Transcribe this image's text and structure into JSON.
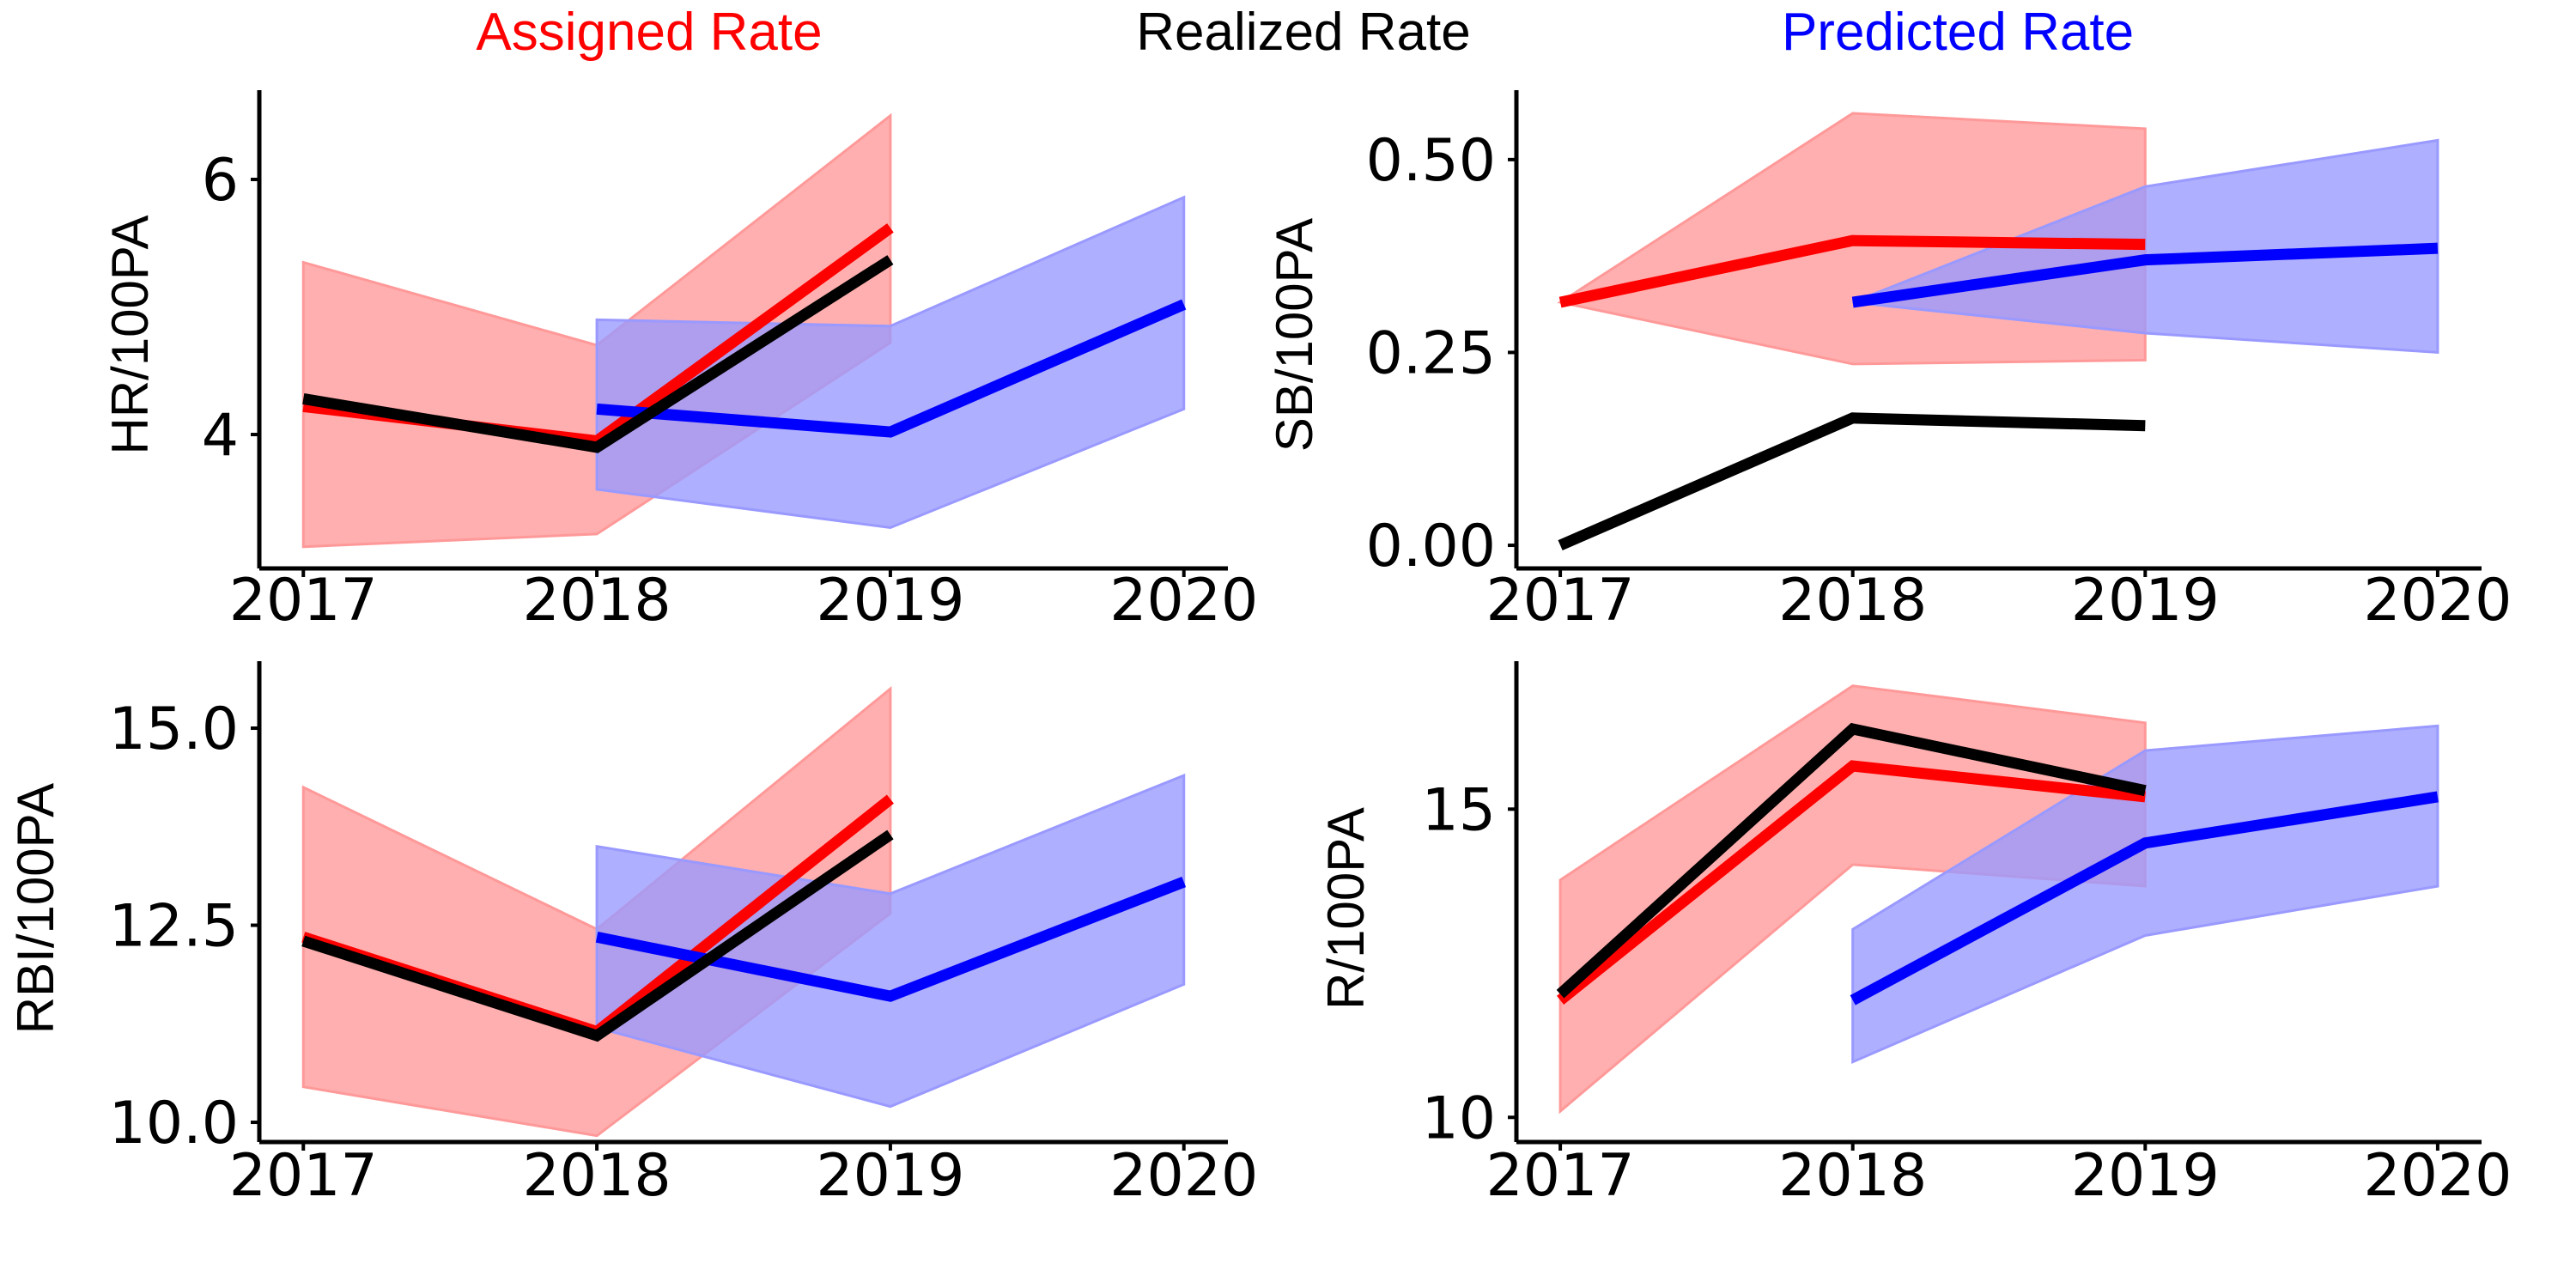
{
  "legend": [
    {
      "label": "Assigned Rate",
      "color": "#ff0000"
    },
    {
      "label": "Realized Rate",
      "color": "#000000"
    },
    {
      "label": "Predicted Rate",
      "color": "#0000ff"
    }
  ],
  "colors": {
    "assigned": "#ff0000",
    "realized": "#000000",
    "predicted": "#0000ff",
    "assigned_band": "#ff9999",
    "predicted_band": "#9999ff"
  },
  "chart_data": [
    {
      "type": "line",
      "ylabel": "HR/100PA",
      "xticks": [
        "2017",
        "2018",
        "2019",
        "2020"
      ],
      "yticks": [
        {
          "value": 4,
          "label": "4"
        },
        {
          "value": 6,
          "label": "6"
        }
      ],
      "xlim": [
        2016.85,
        2020.15
      ],
      "ylim": [
        2.95,
        6.7
      ],
      "series": [
        {
          "name": "Assigned Rate",
          "x": [
            2017,
            2018,
            2019
          ],
          "values": [
            4.22,
            3.95,
            5.62
          ]
        },
        {
          "name": "Realized Rate",
          "x": [
            2017,
            2018,
            2019
          ],
          "values": [
            4.28,
            3.9,
            5.37
          ]
        },
        {
          "name": "Predicted Rate",
          "x": [
            2018,
            2019,
            2020
          ],
          "values": [
            4.2,
            4.02,
            5.02
          ]
        }
      ],
      "bands": [
        {
          "series": "Assigned Rate",
          "x": [
            2017,
            2018,
            2019
          ],
          "lower": [
            3.12,
            3.22,
            4.72
          ],
          "upper": [
            5.35,
            4.7,
            6.5
          ]
        },
        {
          "series": "Predicted Rate",
          "x": [
            2018,
            2019,
            2020
          ],
          "lower": [
            3.57,
            3.27,
            4.2
          ],
          "upper": [
            4.9,
            4.85,
            5.86
          ]
        }
      ]
    },
    {
      "type": "line",
      "ylabel": "SB/100PA",
      "xticks": [
        "2017",
        "2018",
        "2019",
        "2020"
      ],
      "yticks": [
        {
          "value": 0,
          "label": "0.00"
        },
        {
          "value": 0.25,
          "label": "0.25"
        },
        {
          "value": 0.5,
          "label": "0.50"
        }
      ],
      "xlim": [
        2016.85,
        2020.15
      ],
      "ylim": [
        -0.03,
        0.59
      ],
      "series": [
        {
          "name": "Assigned Rate",
          "x": [
            2017,
            2018,
            2019
          ],
          "values": [
            0.315,
            0.395,
            0.39
          ]
        },
        {
          "name": "Realized Rate",
          "x": [
            2017,
            2018,
            2019
          ],
          "values": [
            0.0,
            0.165,
            0.155
          ]
        },
        {
          "name": "Predicted Rate",
          "x": [
            2018,
            2019,
            2020
          ],
          "values": [
            0.315,
            0.37,
            0.385
          ]
        }
      ],
      "bands": [
        {
          "series": "Assigned Rate",
          "x": [
            2017,
            2018,
            2019
          ],
          "lower": [
            0.315,
            0.235,
            0.24
          ],
          "upper": [
            0.315,
            0.56,
            0.54
          ]
        },
        {
          "series": "Predicted Rate",
          "x": [
            2018,
            2019,
            2020
          ],
          "lower": [
            0.315,
            0.275,
            0.25
          ],
          "upper": [
            0.315,
            0.465,
            0.525
          ]
        }
      ]
    },
    {
      "type": "line",
      "ylabel": "RBI/100PA",
      "xticks": [
        "2017",
        "2018",
        "2019",
        "2020"
      ],
      "yticks": [
        {
          "value": 10,
          "label": "10.0"
        },
        {
          "value": 12.5,
          "label": "12.5"
        },
        {
          "value": 15,
          "label": "15.0"
        }
      ],
      "xlim": [
        2016.85,
        2020.15
      ],
      "ylim": [
        9.75,
        15.85
      ],
      "series": [
        {
          "name": "Assigned Rate",
          "x": [
            2017,
            2018,
            2019
          ],
          "values": [
            12.35,
            11.15,
            14.1
          ]
        },
        {
          "name": "Realized Rate",
          "x": [
            2017,
            2018,
            2019
          ],
          "values": [
            12.3,
            11.1,
            13.65
          ]
        },
        {
          "name": "Predicted Rate",
          "x": [
            2018,
            2019,
            2020
          ],
          "values": [
            12.35,
            11.6,
            13.05
          ]
        }
      ],
      "bands": [
        {
          "series": "Assigned Rate",
          "x": [
            2017,
            2018,
            2019
          ],
          "lower": [
            10.45,
            9.83,
            12.65
          ],
          "upper": [
            14.25,
            12.45,
            15.5
          ]
        },
        {
          "series": "Predicted Rate",
          "x": [
            2018,
            2019,
            2020
          ],
          "lower": [
            11.2,
            10.2,
            11.75
          ],
          "upper": [
            13.5,
            12.9,
            14.4
          ]
        }
      ]
    },
    {
      "type": "line",
      "ylabel": "R/100PA",
      "xticks": [
        "2017",
        "2018",
        "2019",
        "2020"
      ],
      "yticks": [
        {
          "value": 10,
          "label": "10"
        },
        {
          "value": 15,
          "label": "15"
        }
      ],
      "xlim": [
        2016.85,
        2020.15
      ],
      "ylim": [
        9.6,
        17.4
      ],
      "series": [
        {
          "name": "Assigned Rate",
          "x": [
            2017,
            2018,
            2019
          ],
          "values": [
            11.9,
            15.7,
            15.2
          ]
        },
        {
          "name": "Realized Rate",
          "x": [
            2017,
            2018,
            2019
          ],
          "values": [
            12.0,
            16.3,
            15.3
          ]
        },
        {
          "name": "Predicted Rate",
          "x": [
            2018,
            2019,
            2020
          ],
          "values": [
            11.9,
            14.45,
            15.2
          ]
        }
      ],
      "bands": [
        {
          "series": "Assigned Rate",
          "x": [
            2017,
            2018,
            2019
          ],
          "lower": [
            10.1,
            14.1,
            13.75
          ],
          "upper": [
            13.85,
            17.0,
            16.4
          ]
        },
        {
          "series": "Predicted Rate",
          "x": [
            2018,
            2019,
            2020
          ],
          "lower": [
            10.9,
            12.95,
            13.75
          ],
          "upper": [
            13.05,
            15.95,
            16.35
          ]
        }
      ]
    }
  ]
}
